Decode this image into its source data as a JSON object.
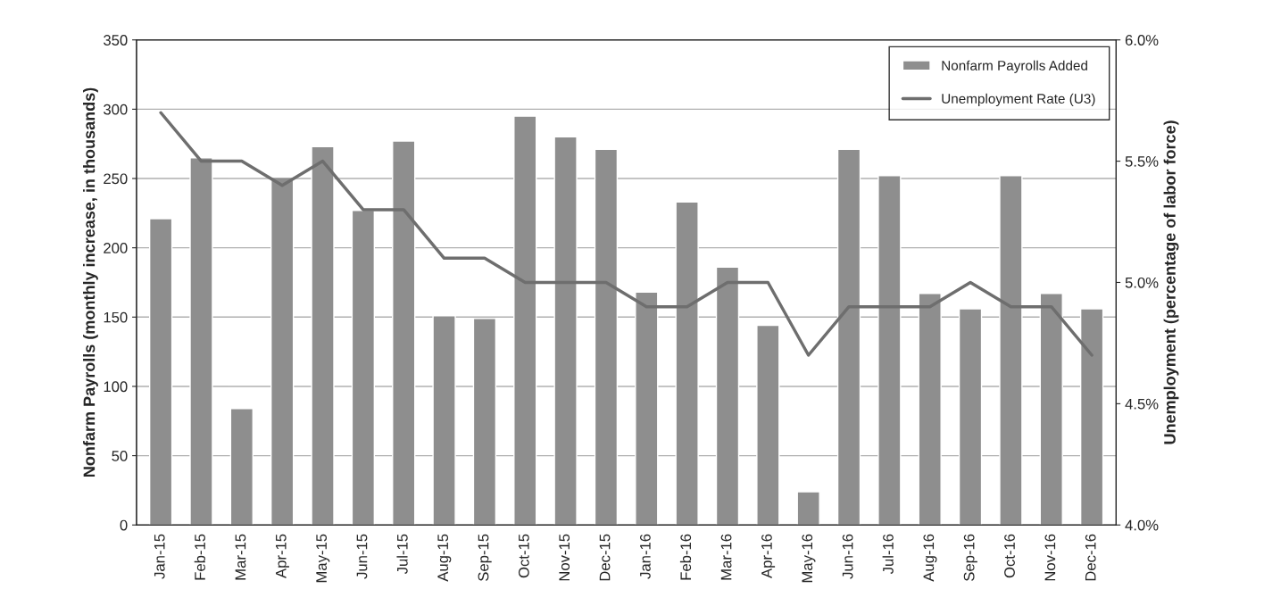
{
  "chart_data": {
    "type": "bar",
    "categories": [
      "Jan-15",
      "Feb-15",
      "Mar-15",
      "Apr-15",
      "May-15",
      "Jun-15",
      "Jul-15",
      "Aug-15",
      "Sep-15",
      "Oct-15",
      "Nov-15",
      "Dec-15",
      "Jan-16",
      "Feb-16",
      "Mar-16",
      "Apr-16",
      "May-16",
      "Jun-16",
      "Jul-16",
      "Aug-16",
      "Sep-16",
      "Oct-16",
      "Nov-16",
      "Dec-16"
    ],
    "series": [
      {
        "name": "Nonfarm Payrolls Added",
        "color": "#8e8e8e",
        "values": [
          221,
          265,
          84,
          251,
          273,
          227,
          277,
          151,
          149,
          295,
          280,
          271,
          168,
          233,
          186,
          144,
          24,
          271,
          252,
          167,
          156,
          252,
          167,
          156
        ]
      },
      {
        "name": "Unemployment Rate (U3)",
        "type": "line",
        "axis": "y2",
        "color": "#6e6e6e",
        "values": [
          5.7,
          5.5,
          5.5,
          5.4,
          5.5,
          5.3,
          5.3,
          5.1,
          5.1,
          5.0,
          5.0,
          5.0,
          4.9,
          4.9,
          5.0,
          5.0,
          4.7,
          4.9,
          4.9,
          4.9,
          5.0,
          4.9,
          4.9,
          4.7
        ]
      }
    ],
    "ylabel": "Nonfarm Payrolls (monthly increase, in thousands)",
    "y2label": "Unemployment (percentage of labor force)",
    "ylim": [
      0,
      350
    ],
    "yticks": [
      0,
      50,
      100,
      150,
      200,
      250,
      300,
      350
    ],
    "y2lim": [
      4.0,
      6.0
    ],
    "y2ticks": [
      {
        "value": 4.0,
        "label": "4.0%"
      },
      {
        "value": 4.5,
        "label": "4.5%"
      },
      {
        "value": 5.0,
        "label": "5.0%"
      },
      {
        "value": 5.5,
        "label": "5.5%"
      },
      {
        "value": 6.0,
        "label": "6.0%"
      }
    ],
    "grid": "y",
    "legend": "top right"
  }
}
